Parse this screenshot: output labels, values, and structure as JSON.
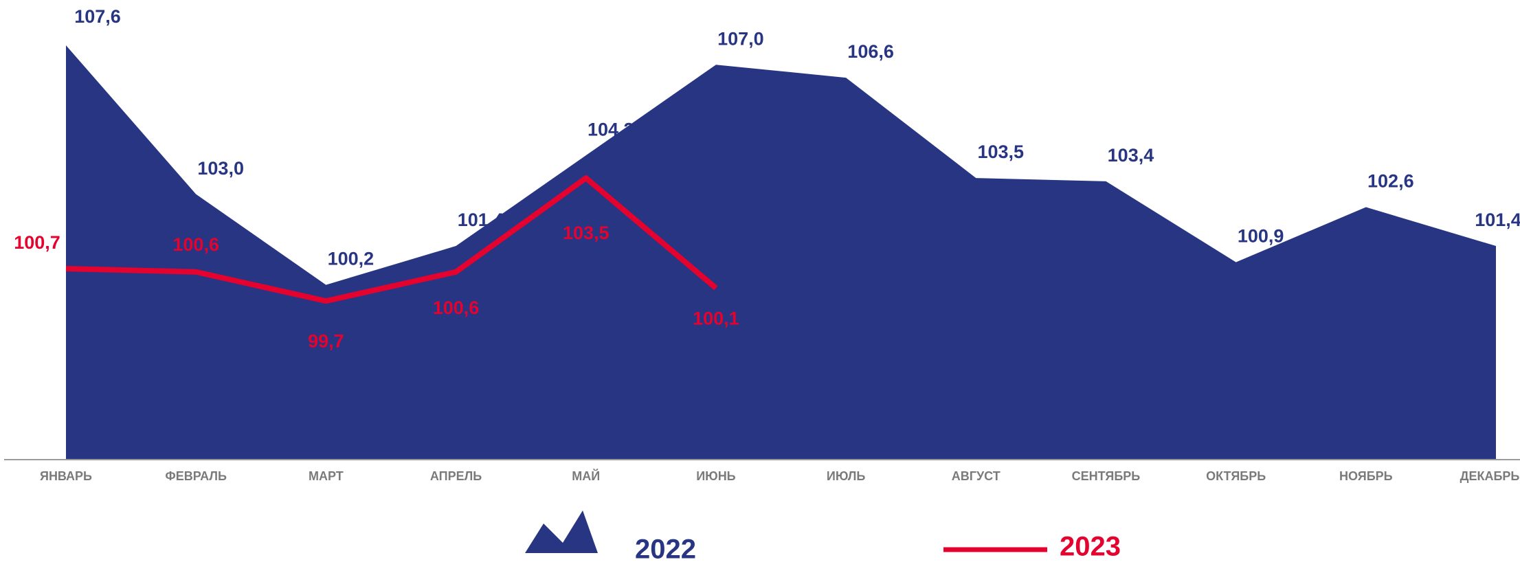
{
  "chart_data": {
    "type": "area_line",
    "categories": [
      "ЯНВАРЬ",
      "ФЕВРАЛЬ",
      "МАРТ",
      "АПРЕЛЬ",
      "МАЙ",
      "ИЮНЬ",
      "ИЮЛЬ",
      "АВГУСТ",
      "СЕНТЯБРЬ",
      "ОКТЯБРЬ",
      "НОЯБРЬ",
      "ДЕКАБРЬ"
    ],
    "ylim": [
      94.8,
      109
    ],
    "series": [
      {
        "name": "2022",
        "kind": "area",
        "color": "#283583",
        "values": [
          107.6,
          103.0,
          100.2,
          101.4,
          104.2,
          107.0,
          106.6,
          103.5,
          103.4,
          100.9,
          102.6,
          101.4
        ],
        "value_labels": [
          "107,6",
          "103,0",
          "100,2",
          "101,4",
          "104,2",
          "107,0",
          "106,6",
          "103,5",
          "103,4",
          "100,9",
          "102,6",
          "101,4"
        ]
      },
      {
        "name": "2023",
        "kind": "line",
        "color": "#e4032e",
        "values": [
          100.7,
          100.6,
          99.7,
          100.6,
          103.5,
          100.1,
          null,
          null,
          null,
          null,
          null,
          null
        ],
        "value_labels": [
          "100,7",
          "100,6",
          "99,7",
          "100,6",
          "103,5",
          "100,1",
          null,
          null,
          null,
          null,
          null,
          null
        ]
      }
    ]
  }
}
